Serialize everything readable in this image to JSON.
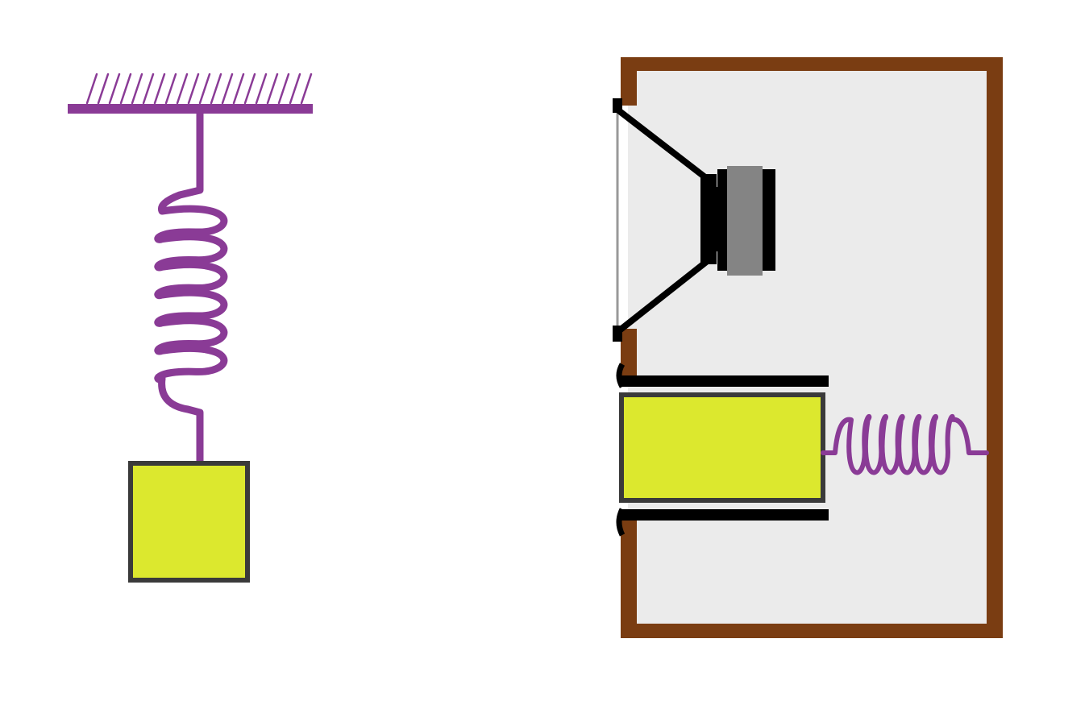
{
  "diagram": {
    "colors": {
      "spring": "#8a3b96",
      "mass": "#dce82e",
      "mass_border": "#3a3a3a",
      "cabinet": "#7a3d12",
      "cabinet_inside": "#ebebeb",
      "driver_metal": "#000000",
      "magnet": "#848484",
      "cone_face": "#999999"
    },
    "left_system": {
      "ceiling": {
        "icon": "hatched-ceiling-icon"
      },
      "spring": {
        "icon": "coil-spring-icon",
        "coils": 6
      },
      "mass": {
        "icon": "square-mass-icon"
      }
    },
    "right_system": {
      "cabinet": {
        "icon": "speaker-cabinet-icon"
      },
      "speaker": {
        "icon": "loudspeaker-driver-icon"
      },
      "port_tube": {
        "icon": "port-tube-icon"
      },
      "mass": {
        "icon": "rectangular-mass-icon"
      },
      "spring": {
        "icon": "coil-spring-icon",
        "coils": 6
      }
    }
  }
}
